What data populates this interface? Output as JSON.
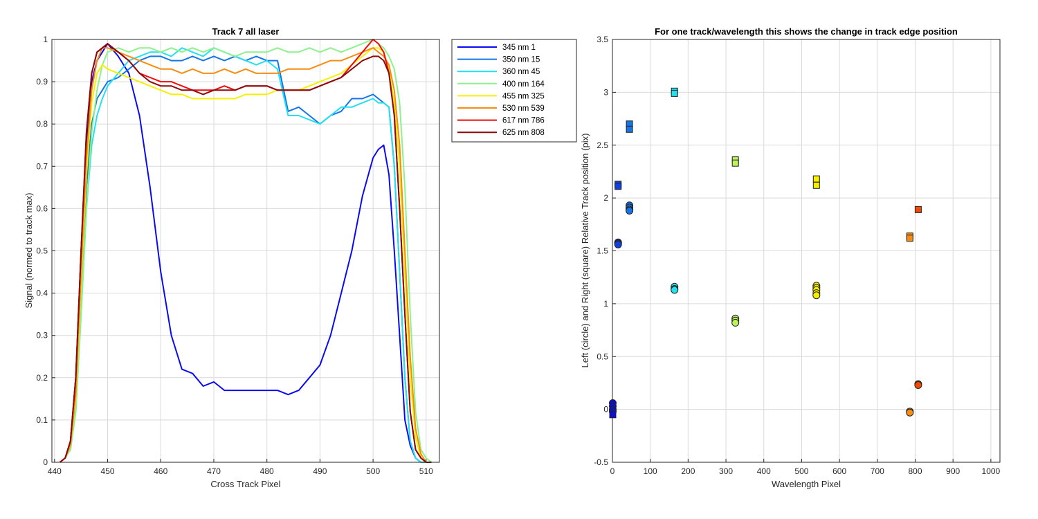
{
  "chart_data": [
    {
      "type": "line",
      "title": "Track 7  all laser",
      "xlabel": "Cross Track Pixel",
      "ylabel": "Signal (normed to track max)",
      "xlim": [
        439.5,
        512.5
      ],
      "ylim": [
        0,
        1
      ],
      "xticks": [
        440,
        450,
        460,
        470,
        480,
        490,
        500,
        510
      ],
      "yticks": [
        0,
        0.1,
        0.2,
        0.3,
        0.4,
        0.5,
        0.6,
        0.7,
        0.8,
        0.9,
        1
      ],
      "grid": true,
      "legend_position": "outside-top-right",
      "x": [
        441,
        442,
        443,
        444,
        445,
        446,
        447,
        448,
        449,
        450,
        452,
        454,
        456,
        458,
        460,
        462,
        464,
        466,
        468,
        470,
        472,
        474,
        476,
        478,
        480,
        482,
        484,
        486,
        488,
        490,
        492,
        494,
        496,
        498,
        500,
        501,
        502,
        503,
        504,
        505,
        506,
        507,
        508,
        509,
        510,
        511
      ],
      "series": [
        {
          "name": "345 nm 1",
          "color": "#0a0af0",
          "values": [
            0,
            0.01,
            0.05,
            0.2,
            0.5,
            0.75,
            0.9,
            0.95,
            0.97,
            0.99,
            0.96,
            0.92,
            0.82,
            0.65,
            0.45,
            0.3,
            0.22,
            0.21,
            0.18,
            0.19,
            0.17,
            0.17,
            0.17,
            0.17,
            0.17,
            0.17,
            0.16,
            0.17,
            0.2,
            0.23,
            0.3,
            0.4,
            0.5,
            0.63,
            0.72,
            0.74,
            0.75,
            0.68,
            0.5,
            0.3,
            0.1,
            0.04,
            0.01,
            0,
            0,
            0
          ]
        },
        {
          "name": "350 nm 15",
          "color": "#1475e8",
          "values": [
            0,
            0.01,
            0.04,
            0.15,
            0.4,
            0.65,
            0.8,
            0.86,
            0.88,
            0.9,
            0.91,
            0.93,
            0.95,
            0.96,
            0.96,
            0.95,
            0.95,
            0.96,
            0.95,
            0.96,
            0.95,
            0.96,
            0.95,
            0.96,
            0.95,
            0.95,
            0.83,
            0.84,
            0.82,
            0.8,
            0.82,
            0.83,
            0.86,
            0.86,
            0.87,
            0.86,
            0.85,
            0.84,
            0.7,
            0.45,
            0.2,
            0.05,
            0.01,
            0,
            0,
            0
          ]
        },
        {
          "name": "360 nm 45",
          "color": "#22e0ee",
          "values": [
            0,
            0.01,
            0.03,
            0.12,
            0.35,
            0.6,
            0.75,
            0.82,
            0.86,
            0.89,
            0.92,
            0.95,
            0.96,
            0.97,
            0.97,
            0.96,
            0.98,
            0.97,
            0.96,
            0.98,
            0.97,
            0.96,
            0.95,
            0.94,
            0.95,
            0.93,
            0.82,
            0.82,
            0.81,
            0.8,
            0.82,
            0.84,
            0.84,
            0.85,
            0.86,
            0.85,
            0.85,
            0.84,
            0.7,
            0.45,
            0.2,
            0.05,
            0.01,
            0,
            0,
            0
          ]
        },
        {
          "name": "400 nm 164",
          "color": "#8cf28c",
          "values": [
            0,
            0.01,
            0.03,
            0.12,
            0.35,
            0.6,
            0.78,
            0.88,
            0.94,
            0.97,
            0.98,
            0.97,
            0.98,
            0.98,
            0.97,
            0.98,
            0.97,
            0.98,
            0.97,
            0.98,
            0.97,
            0.96,
            0.97,
            0.97,
            0.97,
            0.98,
            0.97,
            0.97,
            0.98,
            0.97,
            0.98,
            0.97,
            0.98,
            0.99,
            1,
            0.99,
            0.98,
            0.96,
            0.93,
            0.85,
            0.65,
            0.35,
            0.12,
            0.03,
            0.01,
            0
          ]
        },
        {
          "name": "455 nm 325",
          "color": "#f6f000",
          "values": [
            0,
            0.01,
            0.04,
            0.15,
            0.42,
            0.68,
            0.85,
            0.92,
            0.94,
            0.93,
            0.92,
            0.91,
            0.9,
            0.89,
            0.88,
            0.87,
            0.87,
            0.86,
            0.86,
            0.86,
            0.86,
            0.86,
            0.87,
            0.87,
            0.87,
            0.88,
            0.88,
            0.88,
            0.89,
            0.9,
            0.91,
            0.92,
            0.94,
            0.96,
            0.98,
            0.98,
            0.97,
            0.93,
            0.85,
            0.7,
            0.45,
            0.2,
            0.06,
            0.01,
            0,
            0
          ]
        },
        {
          "name": "530 nm 539",
          "color": "#f68c10",
          "values": [
            0,
            0.01,
            0.04,
            0.16,
            0.45,
            0.72,
            0.88,
            0.95,
            0.98,
            0.98,
            0.97,
            0.96,
            0.95,
            0.94,
            0.93,
            0.93,
            0.92,
            0.93,
            0.92,
            0.92,
            0.93,
            0.92,
            0.93,
            0.92,
            0.92,
            0.92,
            0.93,
            0.93,
            0.93,
            0.94,
            0.95,
            0.95,
            0.96,
            0.97,
            0.98,
            0.97,
            0.96,
            0.94,
            0.88,
            0.75,
            0.5,
            0.25,
            0.08,
            0.02,
            0,
            0
          ]
        },
        {
          "name": "617 nm 786",
          "color": "#f00a0a",
          "values": [
            0,
            0.01,
            0.05,
            0.2,
            0.5,
            0.78,
            0.92,
            0.97,
            0.98,
            0.99,
            0.97,
            0.95,
            0.92,
            0.91,
            0.9,
            0.9,
            0.89,
            0.88,
            0.88,
            0.88,
            0.89,
            0.88,
            0.89,
            0.89,
            0.89,
            0.88,
            0.88,
            0.88,
            0.88,
            0.89,
            0.9,
            0.91,
            0.94,
            0.97,
            1,
            0.99,
            0.97,
            0.92,
            0.82,
            0.6,
            0.35,
            0.12,
            0.03,
            0.01,
            0,
            0
          ]
        },
        {
          "name": "625 nm 808",
          "color": "#8c0a0a",
          "values": [
            0,
            0.01,
            0.05,
            0.2,
            0.5,
            0.78,
            0.92,
            0.97,
            0.98,
            0.99,
            0.97,
            0.95,
            0.92,
            0.9,
            0.89,
            0.89,
            0.88,
            0.88,
            0.87,
            0.88,
            0.88,
            0.88,
            0.89,
            0.89,
            0.89,
            0.88,
            0.88,
            0.88,
            0.88,
            0.89,
            0.9,
            0.91,
            0.93,
            0.95,
            0.96,
            0.96,
            0.95,
            0.92,
            0.82,
            0.6,
            0.35,
            0.12,
            0.03,
            0.01,
            0,
            0
          ]
        }
      ]
    },
    {
      "type": "scatter",
      "title": "For one track/wavelength this shows the change in track edge position",
      "xlabel": "Wavelength Pixel",
      "ylabel": "Left (circle) and Right (square) Relative Track position (pix)",
      "xlim": [
        0,
        1024
      ],
      "ylim": [
        -0.5,
        3.5
      ],
      "xticks": [
        0,
        100,
        200,
        300,
        400,
        500,
        600,
        700,
        800,
        900,
        1000
      ],
      "yticks": [
        -0.5,
        0,
        0.5,
        1,
        1.5,
        2,
        2.5,
        3,
        3.5
      ],
      "grid": true,
      "series": [
        {
          "marker": "circle",
          "color": "#0a0af0",
          "points": [
            [
              1,
              0.06
            ],
            [
              1,
              0.03
            ],
            [
              1,
              0.0
            ],
            [
              1,
              -0.02
            ]
          ]
        },
        {
          "marker": "circle",
          "color": "#1040e0",
          "points": [
            [
              15,
              1.58
            ],
            [
              15,
              1.57
            ],
            [
              15,
              1.56
            ]
          ]
        },
        {
          "marker": "circle",
          "color": "#1475e8",
          "points": [
            [
              45,
              1.93
            ],
            [
              45,
              1.91
            ],
            [
              45,
              1.89
            ],
            [
              45,
              1.88
            ]
          ]
        },
        {
          "marker": "circle",
          "color": "#22e0ee",
          "points": [
            [
              164,
              1.16
            ],
            [
              164,
              1.14
            ],
            [
              164,
              1.13
            ]
          ]
        },
        {
          "marker": "circle",
          "color": "#bdf25a",
          "points": [
            [
              325,
              0.86
            ],
            [
              325,
              0.84
            ],
            [
              325,
              0.82
            ]
          ]
        },
        {
          "marker": "circle",
          "color": "#f6f000",
          "points": [
            [
              539,
              1.17
            ],
            [
              539,
              1.15
            ],
            [
              539,
              1.13
            ],
            [
              539,
              1.1
            ],
            [
              539,
              1.08
            ]
          ]
        },
        {
          "marker": "circle",
          "color": "#f68c10",
          "points": [
            [
              786,
              -0.02
            ],
            [
              786,
              -0.03
            ]
          ]
        },
        {
          "marker": "circle",
          "color": "#f04a0a",
          "points": [
            [
              808,
              0.24
            ],
            [
              808,
              0.23
            ]
          ]
        },
        {
          "marker": "square",
          "color": "#0a0af0",
          "points": [
            [
              1,
              -0.02
            ],
            [
              1,
              -0.05
            ]
          ]
        },
        {
          "marker": "square",
          "color": "#1040e0",
          "points": [
            [
              15,
              2.13
            ],
            [
              15,
              2.11
            ]
          ]
        },
        {
          "marker": "square",
          "color": "#1475e8",
          "points": [
            [
              45,
              2.7
            ],
            [
              45,
              2.65
            ]
          ]
        },
        {
          "marker": "square",
          "color": "#22e0ee",
          "points": [
            [
              164,
              3.01
            ],
            [
              164,
              2.99
            ]
          ]
        },
        {
          "marker": "square",
          "color": "#bdf25a",
          "points": [
            [
              325,
              2.36
            ],
            [
              325,
              2.33
            ]
          ]
        },
        {
          "marker": "square",
          "color": "#f6f000",
          "points": [
            [
              539,
              2.18
            ],
            [
              539,
              2.12
            ]
          ]
        },
        {
          "marker": "square",
          "color": "#f68c10",
          "points": [
            [
              786,
              1.64
            ],
            [
              786,
              1.62
            ]
          ]
        },
        {
          "marker": "square",
          "color": "#f04a0a",
          "points": [
            [
              808,
              1.89
            ]
          ]
        }
      ]
    }
  ]
}
